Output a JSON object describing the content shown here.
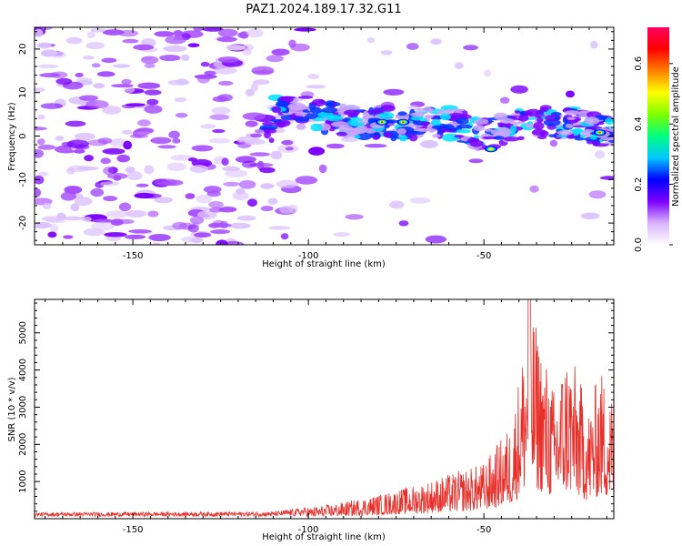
{
  "figure": {
    "title": "PAZ1.2024.189.17.32.G11"
  },
  "chart_data": [
    {
      "type": "heatmap",
      "title": "PAZ1.2024.189.17.32.G11",
      "xlabel": "Height of straight line (km)",
      "ylabel": "Frequency (Hz)",
      "xlim": [
        -178,
        -13
      ],
      "ylim": [
        -25,
        25
      ],
      "x_ticks": [
        -150,
        -100,
        -50
      ],
      "y_ticks": [
        -20,
        -10,
        0,
        10,
        20
      ],
      "colorbar": {
        "label": "Normalized spectral amplitude",
        "range": [
          0,
          0.72
        ],
        "ticks": [
          0.0,
          0.2,
          0.4,
          0.6
        ],
        "colormap": [
          "#ffffff",
          "#d9b3ff",
          "#7a00ff",
          "#0000ff",
          "#00c8ff",
          "#00ff80",
          "#80ff00",
          "#ffff00",
          "#ff8000",
          "#ff0000",
          "#ff0060"
        ]
      },
      "ridge": {
        "description_points": [
          {
            "x": -110,
            "y": 6
          },
          {
            "x": -100,
            "y": 5.5
          },
          {
            "x": -90,
            "y": 3.5
          },
          {
            "x": -80,
            "y": 3
          },
          {
            "x": -72,
            "y": 3
          },
          {
            "x": -60,
            "y": 3
          },
          {
            "x": -50,
            "y": 0
          },
          {
            "x": -40,
            "y": 3
          },
          {
            "x": -25,
            "y": 3
          },
          {
            "x": -13,
            "y": 0.5
          }
        ],
        "peaks": [
          {
            "x": -79,
            "y": 3.2,
            "amp": 0.66
          },
          {
            "x": -73,
            "y": 3.2,
            "amp": 0.7
          },
          {
            "x": -17,
            "y": 0.8,
            "amp": 0.7
          },
          {
            "x": -48,
            "y": -3,
            "amp": 0.55
          }
        ]
      },
      "grid": false
    },
    {
      "type": "line",
      "xlabel": "Height of straight line (km)",
      "ylabel": "SNR (10 * v/v)",
      "xlim": [
        -178,
        -13
      ],
      "ylim": [
        0,
        5900
      ],
      "x_ticks": [
        -150,
        -100,
        -50
      ],
      "y_ticks": [
        1000,
        2000,
        3000,
        4000,
        5000
      ],
      "color": "#e8302a",
      "envelope": [
        {
          "x": -178,
          "y": 150
        },
        {
          "x": -110,
          "y": 170
        },
        {
          "x": -100,
          "y": 300
        },
        {
          "x": -90,
          "y": 450
        },
        {
          "x": -80,
          "y": 650
        },
        {
          "x": -70,
          "y": 900
        },
        {
          "x": -60,
          "y": 1200
        },
        {
          "x": -50,
          "y": 1500
        },
        {
          "x": -42,
          "y": 2600
        },
        {
          "x": -37,
          "y": 5900
        },
        {
          "x": -30,
          "y": 3500
        },
        {
          "x": -26,
          "y": 4700
        },
        {
          "x": -20,
          "y": 3000
        },
        {
          "x": -17,
          "y": 4100
        },
        {
          "x": -13,
          "y": 3300
        }
      ],
      "grid": false
    }
  ]
}
